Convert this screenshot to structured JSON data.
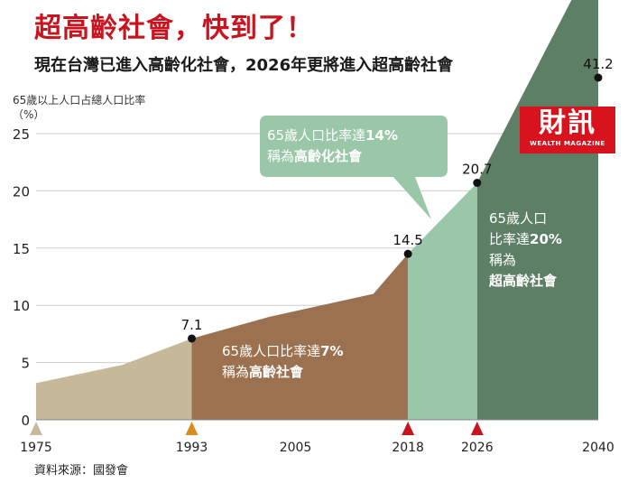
{
  "header": {
    "title": "超高齡社會，快到了！",
    "subtitle": "現在台灣已進入高齡化社會，2026年更將進入超高齡社會"
  },
  "logo": {
    "main": "財訊",
    "sub": "WEALTH MAGAZINE"
  },
  "source": "資料來源：國發會",
  "colors": {
    "beige": "#c5b99a",
    "brown": "#9b7150",
    "light_green": "#9ac7a8",
    "dark_green": "#5d7f66",
    "callout_green": "#9ac7a8",
    "marker_orange": "#d98c1f",
    "marker_red": "#c8141e",
    "marker_gray": "#c5b99a",
    "grid": "#cccccc",
    "axis_text": "#222222"
  },
  "chart_data": {
    "type": "area",
    "title": "超高齡社會，快到了！",
    "ylabel": "65歲以上人口占總人口比率",
    "yunit": "（%）",
    "xlabel": "",
    "xlim": [
      1975,
      2040
    ],
    "ylim": [
      0,
      25
    ],
    "yticks": [
      0,
      5,
      10,
      15,
      20,
      25
    ],
    "grid": true,
    "xticks": [
      {
        "year": 1975,
        "label": "1975",
        "marker": "gray"
      },
      {
        "year": 1993,
        "label": "1993",
        "marker": "orange"
      },
      {
        "year": 2005,
        "label": "2005",
        "marker": ""
      },
      {
        "year": 2018,
        "label": "2018",
        "marker": "red"
      },
      {
        "year": 2026,
        "label": "2026",
        "marker": "red"
      },
      {
        "year": 2040,
        "label": "2040",
        "marker": ""
      }
    ],
    "series": [
      {
        "name": "65歲以上人口占總人口比率",
        "x": [
          1975,
          1985,
          1993,
          2002,
          2014,
          2018,
          2026,
          2040
        ],
        "y": [
          3.2,
          4.8,
          7.1,
          9.0,
          11.0,
          14.5,
          20.7,
          41.2
        ]
      }
    ],
    "labeled_points": [
      {
        "year": 1993,
        "value": 7.1,
        "label": "7.1"
      },
      {
        "year": 2018,
        "value": 14.5,
        "label": "14.5"
      },
      {
        "year": 2026,
        "value": 20.7,
        "label": "20.7"
      },
      {
        "year": 2040,
        "value": 41.2,
        "label": "41.2"
      }
    ],
    "segments": [
      {
        "from": 1975,
        "to": 1993,
        "color": "beige"
      },
      {
        "from": 1993,
        "to": 2018,
        "color": "brown"
      },
      {
        "from": 2018,
        "to": 2026,
        "color": "light_green"
      },
      {
        "from": 2026,
        "to": 2040,
        "color": "dark_green"
      }
    ],
    "annotations": [
      {
        "lines": [
          [
            {
              "text": "65歲人口比率達",
              "bold": false
            },
            {
              "text": "7%",
              "bold": true
            }
          ],
          [
            {
              "text": "稱為",
              "bold": false
            },
            {
              "text": "高齡社會",
              "bold": true
            }
          ]
        ]
      },
      {
        "lines": [
          [
            {
              "text": "65歲人口比率達",
              "bold": false
            },
            {
              "text": "14%",
              "bold": true
            }
          ],
          [
            {
              "text": "稱為",
              "bold": false
            },
            {
              "text": "高齡化社會",
              "bold": true
            }
          ]
        ]
      },
      {
        "lines": [
          [
            {
              "text": "65歲人口",
              "bold": false
            }
          ],
          [
            {
              "text": "比率達",
              "bold": false
            },
            {
              "text": "20%",
              "bold": true
            }
          ],
          [
            {
              "text": "稱為",
              "bold": false
            }
          ],
          [
            {
              "text": "超高齡社會",
              "bold": true
            }
          ]
        ]
      }
    ]
  }
}
